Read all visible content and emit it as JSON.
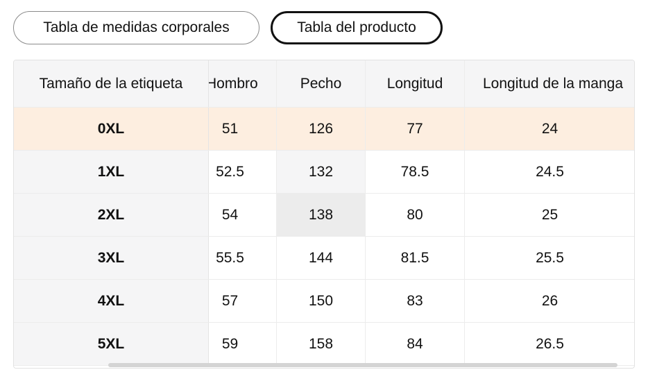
{
  "tabs": {
    "body_measurements": "Tabla de medidas corporales",
    "product_table": "Tabla del producto"
  },
  "table": {
    "headers": [
      "Tamaño de la etiqueta",
      "Hombro",
      "Pecho",
      "Longitud",
      "Longitud de la manga"
    ],
    "rows": [
      [
        "0XL",
        "51",
        "126",
        "77",
        "24"
      ],
      [
        "1XL",
        "52.5",
        "132",
        "78.5",
        "24.5"
      ],
      [
        "2XL",
        "54",
        "138",
        "80",
        "25"
      ],
      [
        "3XL",
        "55.5",
        "144",
        "81.5",
        "25.5"
      ],
      [
        "4XL",
        "57",
        "150",
        "83",
        "26"
      ],
      [
        "5XL",
        "59",
        "158",
        "84",
        "26.5"
      ]
    ]
  },
  "colors": {
    "highlight_row": "#fdeee0",
    "header_bg": "#f5f5f6",
    "active_tab_border": "#111111"
  }
}
